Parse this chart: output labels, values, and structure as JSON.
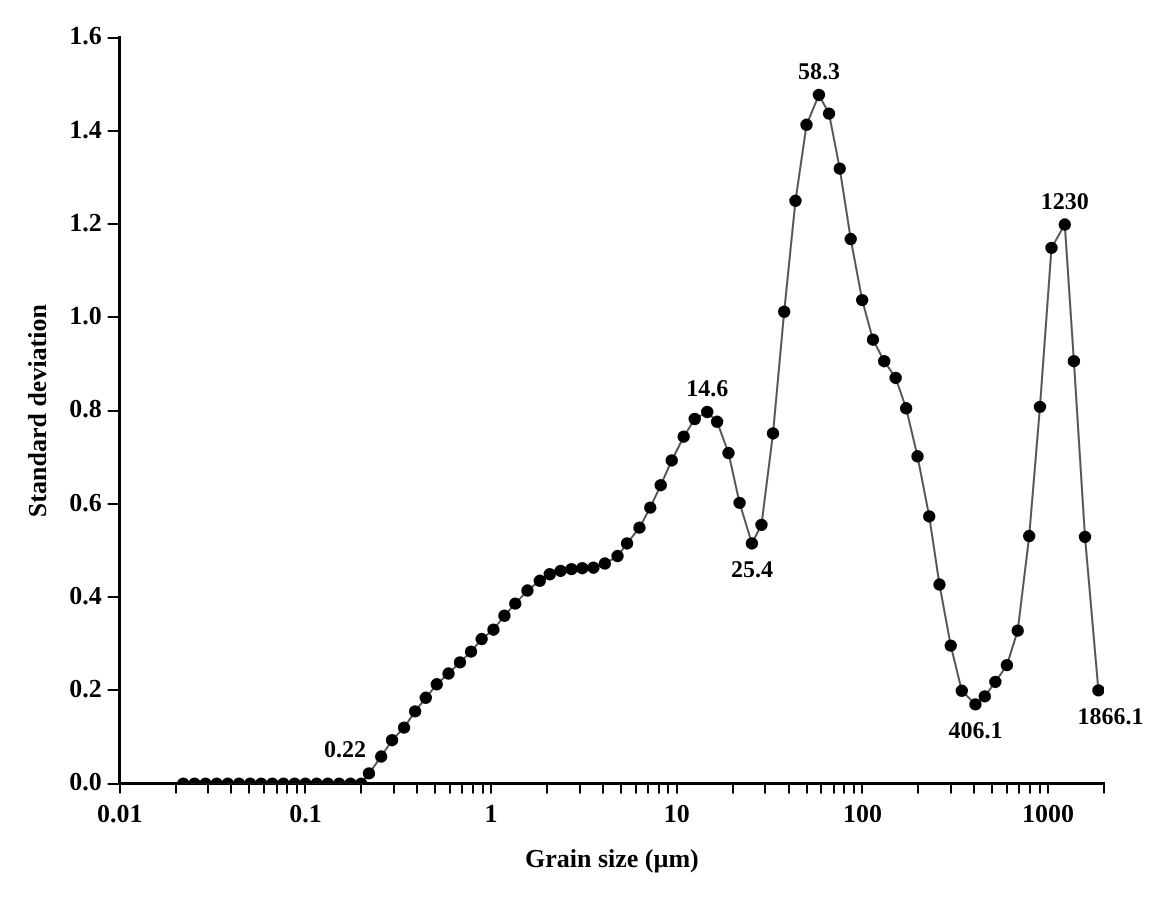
{
  "chart_data": {
    "type": "line",
    "xlabel": "Grain size (µm)",
    "ylabel": "Standard deviation",
    "log": "x",
    "grid": false,
    "legend": false,
    "marker": "circle",
    "line_style": "solid",
    "xlim": [
      0.01,
      2000
    ],
    "xticks": [
      0.01,
      {
        "value": 0.02,
        "label": null
      },
      {
        "value": 0.03,
        "label": null
      },
      {
        "value": 0.04,
        "label": null
      },
      {
        "value": 0.05,
        "label": null
      },
      {
        "value": 0.06,
        "label": null
      },
      {
        "value": 0.07,
        "label": null
      },
      {
        "value": 0.08,
        "label": null
      },
      {
        "value": 0.09,
        "label": null
      },
      0.1,
      {
        "value": 0.2,
        "label": null
      },
      {
        "value": 0.3,
        "label": null
      },
      {
        "value": 0.4,
        "label": null
      },
      {
        "value": 0.5,
        "label": null
      },
      {
        "value": 0.6,
        "label": null
      },
      {
        "value": 0.7,
        "label": null
      },
      {
        "value": 0.8,
        "label": null
      },
      {
        "value": 0.9,
        "label": null
      },
      1,
      {
        "value": 2,
        "label": null
      },
      {
        "value": 3,
        "label": null
      },
      {
        "value": 4,
        "label": null
      },
      {
        "value": 5,
        "label": null
      },
      {
        "value": 6,
        "label": null
      },
      {
        "value": 7,
        "label": null
      },
      {
        "value": 8,
        "label": null
      },
      {
        "value": 9,
        "label": null
      },
      10,
      {
        "value": 20,
        "label": null
      },
      {
        "value": 30,
        "label": null
      },
      {
        "value": 40,
        "label": null
      },
      {
        "value": 50,
        "label": null
      },
      {
        "value": 60,
        "label": null
      },
      {
        "value": 70,
        "label": null
      },
      {
        "value": 80,
        "label": null
      },
      {
        "value": 90,
        "label": null
      },
      100,
      {
        "value": 200,
        "label": null
      },
      {
        "value": 300,
        "label": null
      },
      {
        "value": 400,
        "label": null
      },
      {
        "value": 500,
        "label": null
      },
      {
        "value": 600,
        "label": null
      },
      {
        "value": 700,
        "label": null
      },
      {
        "value": 800,
        "label": null
      },
      {
        "value": 900,
        "label": null
      },
      1000,
      {
        "value": 2000,
        "label": null
      }
    ],
    "ylim": [
      0,
      1.6
    ],
    "yticks": [
      {
        "value": 0,
        "label": "0.0"
      },
      {
        "value": 0.2,
        "label": "0.2"
      },
      {
        "value": 0.4,
        "label": "0.4"
      },
      {
        "value": 0.6,
        "label": "0.6"
      },
      {
        "value": 0.8,
        "label": "0.8"
      },
      {
        "value": 1,
        "label": "1.0"
      },
      {
        "value": 1.2,
        "label": "1.2"
      },
      {
        "value": 1.4,
        "label": "1.4"
      },
      {
        "value": 1.6,
        "label": "1.6"
      }
    ],
    "series": [
      {
        "color": "#000000",
        "x": [
          0.022,
          0.0253,
          0.029,
          0.0333,
          0.0382,
          0.0439,
          0.0504,
          0.0578,
          0.0664,
          0.0762,
          0.0875,
          0.1,
          0.115,
          0.132,
          0.152,
          0.175,
          0.2,
          0.22,
          0.256,
          0.293,
          0.34,
          0.39,
          0.445,
          0.51,
          0.59,
          0.68,
          0.78,
          0.89,
          1.03,
          1.18,
          1.35,
          1.57,
          1.83,
          2.07,
          2.37,
          2.71,
          3.1,
          3.56,
          4.1,
          4.8,
          5.4,
          6.3,
          7.2,
          8.2,
          9.4,
          10.9,
          12.5,
          14.6,
          16.5,
          19,
          21.8,
          25.4,
          28.6,
          33,
          37.9,
          43.6,
          50,
          58.3,
          66.1,
          75.5,
          86.5,
          99.7,
          114,
          131,
          151,
          172,
          198,
          229,
          260,
          299,
          343,
          406.1,
          456,
          520,
          600,
          686,
          791,
          904,
          1043,
          1230,
          1377,
          1580,
          1866.1
        ],
        "values": [
          0,
          0,
          0,
          0,
          0,
          0,
          0,
          0,
          0,
          0,
          0,
          0,
          0,
          0,
          0,
          0,
          0,
          0.022,
          0.058,
          0.093,
          0.12,
          0.155,
          0.184,
          0.213,
          0.236,
          0.26,
          0.283,
          0.31,
          0.33,
          0.36,
          0.386,
          0.414,
          0.435,
          0.449,
          0.456,
          0.46,
          0.462,
          0.463,
          0.472,
          0.488,
          0.515,
          0.549,
          0.592,
          0.64,
          0.693,
          0.744,
          0.782,
          0.797,
          0.776,
          0.709,
          0.602,
          0.515,
          0.555,
          0.751,
          1.012,
          1.25,
          1.413,
          1.477,
          1.437,
          1.319,
          1.168,
          1.037,
          0.952,
          0.906,
          0.87,
          0.805,
          0.702,
          0.573,
          0.427,
          0.296,
          0.199,
          0.17,
          0.187,
          0.218,
          0.254,
          0.328,
          0.531,
          0.808,
          1.149,
          1.199,
          0.906,
          0.529,
          0.2
        ]
      }
    ],
    "annotations": [
      {
        "text": "0.22",
        "x": 0.22,
        "y": 0.022
      },
      {
        "text": "14.6",
        "x": 14.6,
        "y": 0.797
      },
      {
        "text": "25.4",
        "x": 25.4,
        "y": 0.515
      },
      {
        "text": "58.3",
        "x": 58.3,
        "y": 1.477
      },
      {
        "text": "406.1",
        "x": 406.1,
        "y": 0.17
      },
      {
        "text": "1230",
        "x": 1230,
        "y": 1.199
      },
      {
        "text": "1866.1",
        "x": 1866.1,
        "y": 0.2
      }
    ]
  }
}
